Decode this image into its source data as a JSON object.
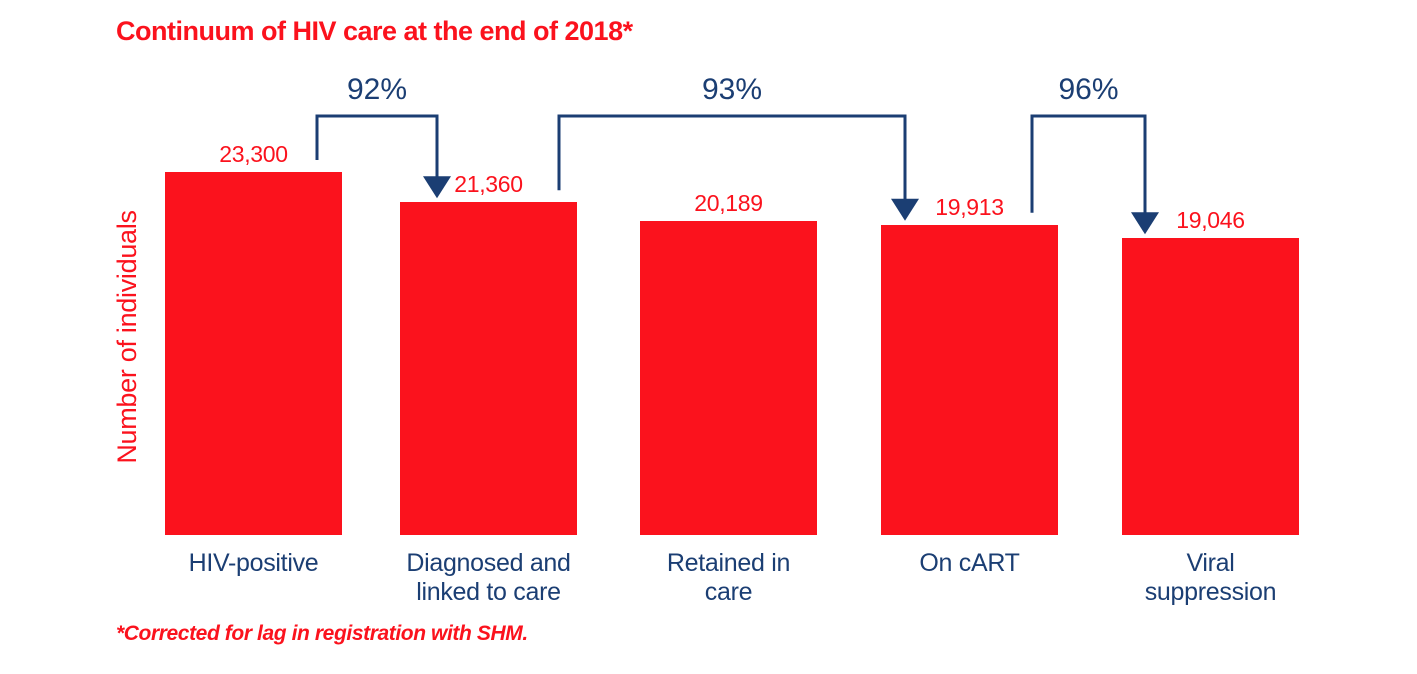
{
  "header": {
    "title": "Continuum of HIV care at the end of 2018*"
  },
  "y_axis": {
    "label": "Number of individuals"
  },
  "footnote": {
    "text": "*Corrected for lag in registration with SHM."
  },
  "colors": {
    "bar_red": "#fb121d",
    "arrow_navy": "#1b3e73",
    "background": "#ffffff"
  },
  "chart_data": {
    "type": "bar",
    "title": "Continuum of HIV care at the end of 2018*",
    "xlabel": "",
    "ylabel": "Number of individuals",
    "categories": [
      "HIV-positive",
      "Diagnosed and\nlinked to care",
      "Retained in\ncare",
      "On cART",
      "Viral\nsuppression"
    ],
    "values": [
      23300,
      21360,
      20189,
      19913,
      19046
    ],
    "value_labels": [
      "23,300",
      "21,360",
      "20,189",
      "19,913",
      "19,046"
    ],
    "bar_color": "#fb121d",
    "ylim": [
      0,
      23300
    ],
    "grid": false,
    "legend": false,
    "axis_lines": false,
    "connectors": [
      {
        "label": "92%",
        "from_index": 0,
        "to_index": 1
      },
      {
        "label": "93%",
        "from_index": 1,
        "to_index": 3
      },
      {
        "label": "96%",
        "from_index": 3,
        "to_index": 4
      }
    ],
    "footnote": "*Corrected for lag in registration with SHM."
  }
}
